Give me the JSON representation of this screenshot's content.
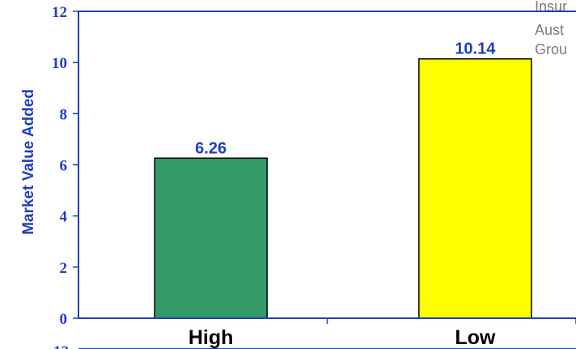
{
  "chart_data": {
    "type": "bar",
    "categories": [
      "High",
      "Low"
    ],
    "values": [
      6.26,
      10.14
    ],
    "value_labels": [
      "6.26",
      "10.14"
    ],
    "bar_colors": [
      "#339966",
      "#ffff00"
    ],
    "ylabel": "Market Value Added",
    "xlabel": "",
    "ylim": [
      0,
      12
    ],
    "yticks": [
      "0",
      "2",
      "4",
      "6",
      "8",
      "10",
      "12"
    ],
    "grid": false,
    "axis_color": "#1f3fbf"
  },
  "clipped_legend_text": [
    "Insur",
    "Aust",
    "Grou"
  ],
  "clipped_second_chart_tick": "12"
}
